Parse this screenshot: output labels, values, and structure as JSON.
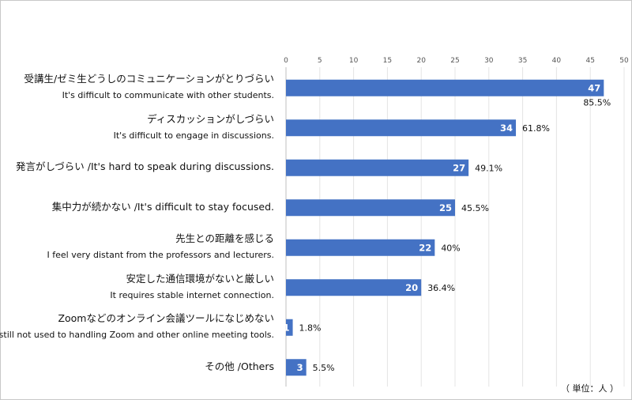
{
  "chart_data": {
    "type": "bar",
    "orientation": "horizontal",
    "categories": [
      {
        "jp": "受講生/ゼミ生どうしのコミュニケーションがとりづらい",
        "en": "It's difficult to communicate with other students."
      },
      {
        "jp": "ディスカッションがしづらい",
        "en": "It's difficult to engage in discussions."
      },
      {
        "jp": "発言がしづらい /It's hard to speak during discussions.",
        "en": ""
      },
      {
        "jp": "集中力が続かない /It's difficult to stay focused.",
        "en": ""
      },
      {
        "jp": "先生との距離を感じる",
        "en": "I feel very distant from the professors and lecturers."
      },
      {
        "jp": "安定した通信環境がないと厳しい",
        "en": "It requires stable internet connection."
      },
      {
        "jp": "Zoomなどのオンライン会議ツールになじめない",
        "en": "I'm still not used to handling Zoom and other online meeting tools."
      },
      {
        "jp": "その他 /Others",
        "en": ""
      }
    ],
    "values": [
      47,
      34,
      27,
      25,
      22,
      20,
      1,
      3
    ],
    "percent_labels": [
      "85.5%",
      "61.8%",
      "49.1%",
      "45.5%",
      "40%",
      "36.4%",
      "1.8%",
      "5.5%"
    ],
    "xlim": [
      0,
      50
    ],
    "xticks": [
      "0",
      "5",
      "10",
      "15",
      "20",
      "25",
      "30",
      "35",
      "40",
      "45",
      "50"
    ],
    "grid": true,
    "axis_position": "top",
    "unit_note": "（ 単位：人 ）",
    "bar_color": "#4472c4"
  }
}
